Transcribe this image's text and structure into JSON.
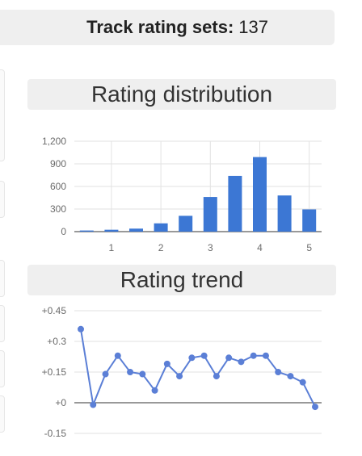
{
  "header": {
    "label": "Track rating sets:",
    "value": "137"
  },
  "colors": {
    "bar": "#3c77d4",
    "line": "#5b7fd6",
    "grid": "#e2e2e2",
    "axis": "#333333"
  },
  "chart_data": [
    {
      "type": "bar",
      "title": "Rating distribution",
      "x": [
        0.5,
        1.0,
        1.5,
        2.0,
        2.5,
        3.0,
        3.5,
        4.0,
        4.5,
        5.0
      ],
      "values": [
        15,
        25,
        40,
        110,
        210,
        460,
        740,
        990,
        480,
        295
      ],
      "xlim": [
        0.25,
        5.25
      ],
      "xticks": [
        "1",
        "2",
        "3",
        "4",
        "5"
      ],
      "ylim": [
        0,
        1200
      ],
      "yticks": [
        "1,200",
        "900",
        "600",
        "300",
        "0"
      ],
      "grid": true
    },
    {
      "type": "line",
      "title": "Rating trend",
      "values": [
        0.36,
        -0.01,
        0.14,
        0.23,
        0.15,
        0.14,
        0.06,
        0.19,
        0.13,
        0.22,
        0.23,
        0.13,
        0.22,
        0.2,
        0.23,
        0.23,
        0.15,
        0.13,
        0.1,
        -0.02
      ],
      "ylim": [
        -0.15,
        0.45
      ],
      "yticks": [
        "+0.45",
        "+0.3",
        "+0.15",
        "+0",
        "-0.15"
      ],
      "grid": true
    }
  ]
}
